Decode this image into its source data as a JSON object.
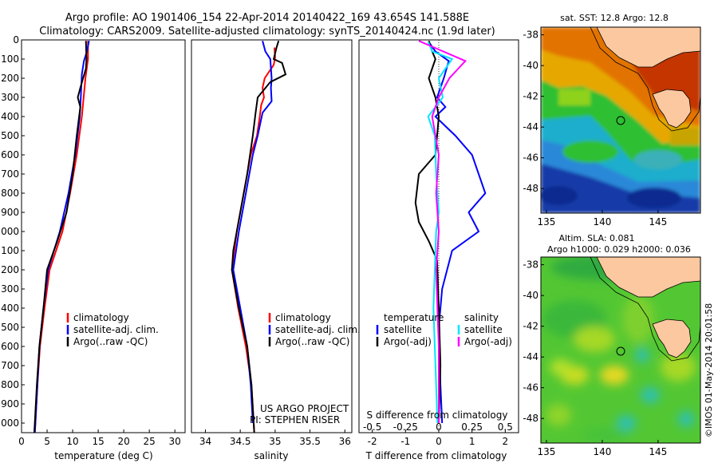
{
  "title_line1": "Argo profile: AO 1901406_154 22-Apr-2014 20140422_169 43.654S 141.588E",
  "title_line2": "Climatology: CARS2009. Satellite-adjusted climatology: synTS_20140424.nc (1.9d later)",
  "side_stamp": "©IMOS 01-May-2014 20:01:58",
  "colors": {
    "climatology": "#ff0000",
    "satellite": "#0000ff",
    "argo": "#000000",
    "sat_diff_S": "#00e5ff",
    "argo_diff_S": "#ff00ff"
  },
  "chart_data": [
    {
      "type": "line",
      "id": "temperature",
      "xlabel": "temperature (deg C)",
      "xlim": [
        0,
        32
      ],
      "xticks": [
        0,
        5,
        10,
        15,
        20,
        25,
        30
      ],
      "ylim": [
        2050,
        0
      ],
      "yticks": [
        0,
        100,
        200,
        300,
        400,
        500,
        600,
        700,
        800,
        900,
        1000,
        1100,
        1200,
        1300,
        1400,
        1500,
        1600,
        1700,
        1800,
        1900,
        2000
      ],
      "legend": [
        "climatology",
        "satellite-adj. clim.",
        "Argo(..raw -QC)"
      ],
      "series": [
        {
          "name": "climatology",
          "color": "#ff0000",
          "points": [
            [
              13.0,
              5
            ],
            [
              13.0,
              100
            ],
            [
              12.5,
              200
            ],
            [
              11.8,
              400
            ],
            [
              10.8,
              600
            ],
            [
              9.5,
              800
            ],
            [
              8.0,
              1000
            ],
            [
              5.5,
              1200
            ],
            [
              4.5,
              1400
            ],
            [
              3.6,
              1600
            ],
            [
              3.1,
              1800
            ],
            [
              2.6,
              2050
            ]
          ]
        },
        {
          "name": "satellite-adj. clim.",
          "color": "#0000ff",
          "points": [
            [
              13.2,
              5
            ],
            [
              12.8,
              60
            ],
            [
              12.2,
              110
            ],
            [
              11.8,
              180
            ],
            [
              11.6,
              300
            ],
            [
              11.4,
              400
            ],
            [
              10.5,
              600
            ],
            [
              9.2,
              800
            ],
            [
              7.5,
              1000
            ],
            [
              5.2,
              1200
            ],
            [
              4.3,
              1400
            ],
            [
              3.5,
              1600
            ],
            [
              3.1,
              1800
            ],
            [
              2.6,
              2050
            ]
          ]
        },
        {
          "name": "Argo(..raw -QC)",
          "color": "#000000",
          "points": [
            [
              12.6,
              5
            ],
            [
              12.7,
              100
            ],
            [
              12.6,
              150
            ],
            [
              11.5,
              250
            ],
            [
              11.0,
              300
            ],
            [
              11.5,
              350
            ],
            [
              10.8,
              500
            ],
            [
              10.0,
              700
            ],
            [
              8.8,
              900
            ],
            [
              7.0,
              1050
            ],
            [
              5.0,
              1200
            ],
            [
              4.3,
              1400
            ],
            [
              3.5,
              1600
            ],
            [
              3.0,
              1800
            ],
            [
              2.5,
              2050
            ]
          ]
        }
      ]
    },
    {
      "type": "line",
      "id": "salinity",
      "xlabel": "salinity",
      "xlim": [
        33.8,
        36.1
      ],
      "xticks": [
        34,
        34.5,
        35,
        35.5,
        36
      ],
      "ylim": [
        2050,
        0
      ],
      "legend": [
        "climatology",
        "satellite-adj. clim.",
        "Argo(..raw -QC)"
      ],
      "annotation": [
        "US ARGO PROJECT",
        "PI: STEPHEN RISER"
      ],
      "series": [
        {
          "name": "climatology",
          "color": "#ff0000",
          "points": [
            [
              34.99,
              40
            ],
            [
              35.0,
              90
            ],
            [
              34.98,
              130
            ],
            [
              34.85,
              200
            ],
            [
              34.82,
              250
            ],
            [
              34.84,
              300
            ],
            [
              34.8,
              340
            ],
            [
              34.78,
              400
            ],
            [
              34.74,
              500
            ],
            [
              34.65,
              600
            ],
            [
              34.55,
              800
            ],
            [
              34.45,
              1000
            ],
            [
              34.38,
              1200
            ],
            [
              34.47,
              1400
            ],
            [
              34.58,
              1600
            ],
            [
              34.66,
              1800
            ],
            [
              34.7,
              2050
            ]
          ]
        },
        {
          "name": "satellite-adj. clim.",
          "color": "#0000ff",
          "points": [
            [
              34.82,
              5
            ],
            [
              34.86,
              60
            ],
            [
              34.93,
              100
            ],
            [
              34.95,
              200
            ],
            [
              34.94,
              250
            ],
            [
              34.95,
              320
            ],
            [
              34.82,
              380
            ],
            [
              34.75,
              500
            ],
            [
              34.68,
              600
            ],
            [
              34.58,
              800
            ],
            [
              34.48,
              1000
            ],
            [
              34.4,
              1200
            ],
            [
              34.5,
              1400
            ],
            [
              34.6,
              1600
            ],
            [
              34.65,
              1800
            ],
            [
              34.68,
              2000
            ]
          ]
        },
        {
          "name": "Argo(..raw -QC)",
          "color": "#000000",
          "points": [
            [
              35.05,
              5
            ],
            [
              35.02,
              40
            ],
            [
              34.98,
              100
            ],
            [
              35.1,
              120
            ],
            [
              35.15,
              180
            ],
            [
              34.93,
              220
            ],
            [
              34.75,
              300
            ],
            [
              34.72,
              380
            ],
            [
              34.68,
              500
            ],
            [
              34.6,
              700
            ],
            [
              34.5,
              900
            ],
            [
              34.4,
              1100
            ],
            [
              34.38,
              1200
            ],
            [
              34.48,
              1400
            ],
            [
              34.6,
              1600
            ],
            [
              34.66,
              1800
            ],
            [
              34.7,
              2050
            ]
          ]
        }
      ]
    },
    {
      "type": "line",
      "id": "difference",
      "xlabel": "T difference from climatology",
      "xlabel2": "S difference from climatology",
      "xlim": [
        -2.4,
        2.4
      ],
      "xticks": [
        -2,
        -1,
        0,
        1,
        2
      ],
      "sxticks": [
        -0.5,
        -0.25,
        0,
        0.25,
        0.5
      ],
      "sxlabels": [
        "-0.5",
        "-0.25",
        "0",
        "0.25",
        "0.5"
      ],
      "ylim": [
        2050,
        0
      ],
      "legend_temperature_title": "temperature",
      "legend_salinity_title": "salinity",
      "legend_temperature": [
        "satellite",
        "Argo(-adj)"
      ],
      "legend_salinity": [
        "satellite",
        "Argo(-adj)"
      ],
      "series": [
        {
          "name": "T satellite",
          "color": "#0000ff",
          "points": [
            [
              -0.3,
              10
            ],
            [
              -0.1,
              60
            ],
            [
              0.3,
              110
            ],
            [
              0.15,
              200
            ],
            [
              -0.05,
              300
            ],
            [
              0.2,
              350
            ],
            [
              -0.1,
              400
            ],
            [
              0.5,
              500
            ],
            [
              1.0,
              600
            ],
            [
              1.4,
              800
            ],
            [
              0.9,
              900
            ],
            [
              1.2,
              1000
            ],
            [
              0.4,
              1100
            ],
            [
              0.1,
              1300
            ],
            [
              0.0,
              1500
            ],
            [
              0.05,
              1800
            ],
            [
              0.1,
              2000
            ]
          ]
        },
        {
          "name": "T Argo(-adj)",
          "color": "#000000",
          "points": [
            [
              -0.3,
              5
            ],
            [
              -0.2,
              60
            ],
            [
              -0.1,
              100
            ],
            [
              -0.3,
              200
            ],
            [
              -0.1,
              300
            ],
            [
              0.0,
              400
            ],
            [
              -0.1,
              600
            ],
            [
              -0.6,
              700
            ],
            [
              -0.7,
              850
            ],
            [
              -0.6,
              950
            ],
            [
              -0.3,
              1050
            ],
            [
              -0.05,
              1150
            ],
            [
              0.0,
              1400
            ],
            [
              0.05,
              1700
            ],
            [
              0.0,
              2000
            ]
          ]
        },
        {
          "name": "S satellite",
          "color": "#00e5ff",
          "points": [
            [
              -0.08,
              10
            ],
            [
              -0.05,
              60
            ],
            [
              0.1,
              100
            ],
            [
              0.05,
              150
            ],
            [
              0.0,
              200
            ],
            [
              0.03,
              300
            ],
            [
              -0.08,
              400
            ],
            [
              -0.03,
              500
            ],
            [
              -0.02,
              700
            ],
            [
              0.0,
              900
            ],
            [
              -0.02,
              1000
            ],
            [
              -0.03,
              1200
            ],
            [
              -0.04,
              1400
            ],
            [
              -0.03,
              1600
            ],
            [
              -0.02,
              1800
            ],
            [
              -0.01,
              2000
            ]
          ]
        },
        {
          "name": "S Argo(-adj)",
          "color": "#ff00ff",
          "points": [
            [
              -0.15,
              5
            ],
            [
              0.0,
              50
            ],
            [
              0.2,
              110
            ],
            [
              0.08,
              200
            ],
            [
              0.0,
              300
            ],
            [
              -0.05,
              400
            ],
            [
              0.0,
              600
            ],
            [
              -0.02,
              800
            ],
            [
              0.0,
              1000
            ],
            [
              -0.02,
              1200
            ],
            [
              0.0,
              1600
            ],
            [
              0.0,
              2000
            ]
          ]
        }
      ]
    },
    {
      "type": "heatmap",
      "id": "sst-map",
      "title": "sat. SST: 12.8 Argo: 12.8",
      "xlim": [
        134.5,
        148.8
      ],
      "ylim": [
        -49.6,
        -37.5
      ],
      "xticks": [
        135,
        140,
        145
      ],
      "yticks": [
        -38,
        -40,
        -42,
        -44,
        -46,
        -48
      ],
      "marker": [
        141.588,
        -43.654
      ]
    },
    {
      "type": "heatmap",
      "id": "sla-map",
      "title_line1": "Altim. SLA: 0.081",
      "title_line2": "Argo h1000: 0.029 h2000: 0.036",
      "xlim": [
        134.5,
        148.8
      ],
      "ylim": [
        -49.6,
        -37.5
      ],
      "xticks": [
        135,
        140,
        145
      ],
      "yticks": [
        -38,
        -40,
        -42,
        -44,
        -46,
        -48
      ],
      "marker": [
        141.588,
        -43.654
      ]
    }
  ]
}
